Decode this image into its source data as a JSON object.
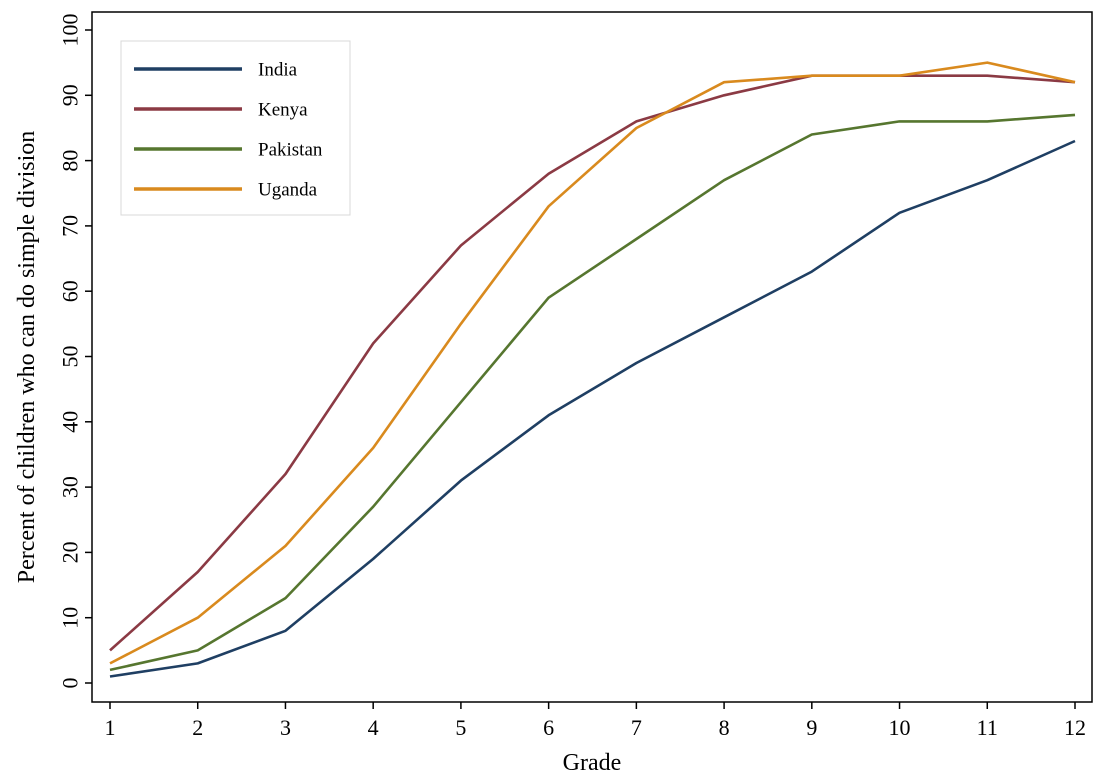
{
  "chart_data": {
    "type": "line",
    "title": "",
    "xlabel": "Grade",
    "ylabel": "Percent of children who can do simple division",
    "x": [
      1,
      2,
      3,
      4,
      5,
      6,
      7,
      8,
      9,
      10,
      11,
      12
    ],
    "xticks": [
      "1",
      "2",
      "3",
      "4",
      "5",
      "6",
      "7",
      "8",
      "9",
      "10",
      "11",
      "12"
    ],
    "yticks": [
      "0",
      "10",
      "20",
      "30",
      "40",
      "50",
      "60",
      "70",
      "80",
      "90",
      "100"
    ],
    "xlim": [
      1,
      12
    ],
    "ylim": [
      0,
      100
    ],
    "grid": false,
    "legend_position": "top-left",
    "series": [
      {
        "name": "India",
        "color": "#1f3f63",
        "values": [
          1,
          3,
          8,
          19,
          31,
          41,
          49,
          56,
          63,
          72,
          77,
          83
        ]
      },
      {
        "name": "Kenya",
        "color": "#8b3a44",
        "values": [
          5,
          17,
          32,
          52,
          67,
          78,
          86,
          90,
          93,
          93,
          93,
          92
        ]
      },
      {
        "name": "Pakistan",
        "color": "#56762f",
        "values": [
          2,
          5,
          13,
          27,
          43,
          59,
          68,
          77,
          84,
          86,
          86,
          87
        ]
      },
      {
        "name": "Uganda",
        "color": "#d98a1e",
        "values": [
          3,
          10,
          21,
          36,
          55,
          73,
          85,
          92,
          93,
          93,
          95,
          92
        ]
      }
    ]
  }
}
